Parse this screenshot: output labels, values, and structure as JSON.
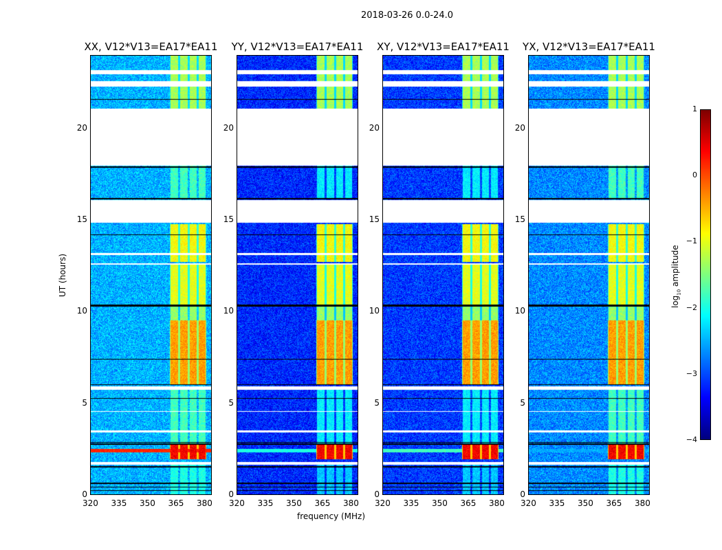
{
  "chart_data": {
    "type": "heatmap",
    "title": "2018-03-26 0.0-24.0",
    "xlabel": "frequency (MHz)",
    "ylabel": "UT (hours)",
    "xlim": [
      320,
      384
    ],
    "ylim": [
      0,
      24
    ],
    "xticks": [
      "320",
      "335",
      "350",
      "365",
      "380"
    ],
    "xtick_values": [
      320,
      335,
      350,
      365,
      380
    ],
    "yticks": [
      "0",
      "5",
      "10",
      "15",
      "20"
    ],
    "ytick_values": [
      0,
      5,
      10,
      15,
      20
    ],
    "colorbar": {
      "label": "log10 amplitude",
      "label_main": "log",
      "label_sub": "10",
      "label_rest": " amplitude",
      "range": [
        -4,
        1
      ],
      "ticks": [
        "1",
        "0",
        "−1",
        "−2",
        "−3",
        "−4"
      ],
      "tick_values": [
        1,
        0,
        -1,
        -2,
        -3,
        -4
      ],
      "colormap": "jet"
    },
    "panels": [
      {
        "title": "XX, V12*V13=EA17*EA11",
        "base_level": -2.5,
        "rfi_row_level": 0.2
      },
      {
        "title": "YY, V12*V13=EA17*EA11",
        "base_level": -3.2,
        "rfi_row_level": -2.0
      },
      {
        "title": "XY, V12*V13=EA17*EA11",
        "base_level": -3.1,
        "rfi_row_level": -1.8
      },
      {
        "title": "YX, V12*V13=EA17*EA11",
        "base_level": -2.7,
        "rfi_row_level": -2.6
      }
    ],
    "signal_channels_mhz": [
      [
        362,
        367
      ],
      [
        367,
        372
      ],
      [
        372,
        377
      ],
      [
        377,
        381.5
      ]
    ],
    "signal_periods": [
      {
        "hours": [
          0,
          1.7
        ],
        "level": -2.0
      },
      {
        "hours": [
          1.9,
          2.75
        ],
        "level": 0.4
      },
      {
        "hours": [
          2.8,
          5.8
        ],
        "level": -1.8
      },
      {
        "hours": [
          6.0,
          9.5
        ],
        "level": -0.4
      },
      {
        "hours": [
          9.5,
          10.3
        ],
        "level": -1.4
      },
      {
        "hours": [
          10.4,
          12.6
        ],
        "level": -1.0
      },
      {
        "hours": [
          12.7,
          14.8
        ],
        "level": -0.9
      },
      {
        "hours": [
          16.2,
          18.0
        ],
        "level": -1.8
      },
      {
        "hours": [
          21.1,
          24
        ],
        "level": -1.3
      }
    ],
    "blank_hours": [
      [
        18.0,
        21.1
      ],
      [
        14.85,
        16.1
      ],
      [
        22.3,
        22.6
      ],
      [
        23.0,
        23.2
      ],
      [
        5.7,
        5.9
      ],
      [
        1.6,
        1.75
      ],
      [
        12.55,
        12.65
      ],
      [
        4.5,
        4.55
      ],
      [
        3.4,
        3.5
      ],
      [
        13.1,
        13.2
      ]
    ],
    "flag_lines_hours": [
      16.2,
      16.15,
      10.35,
      10.3,
      2.85,
      2.75,
      1.5,
      0.6,
      0.4,
      0.2,
      6.0,
      5.25,
      7.4,
      14.2,
      21.6,
      17.9
    ]
  }
}
